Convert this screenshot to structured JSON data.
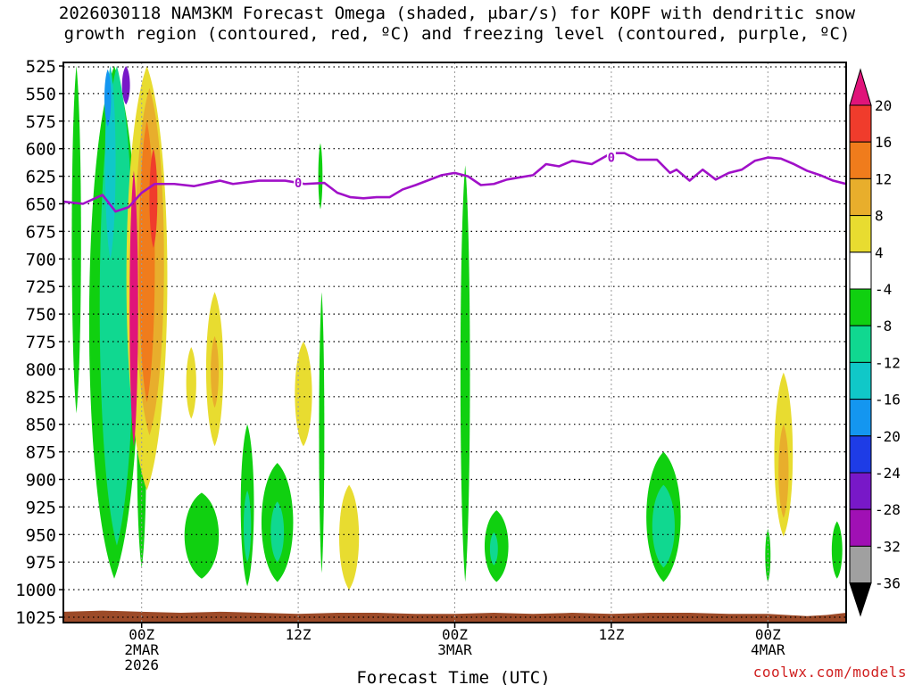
{
  "chart_data": {
    "type": "heatmap",
    "title_line1": "2026030118 NAM3KM Forecast Omega (shaded, μbar/s) for KOPF with dendritic snow",
    "title_line2": "growth region (contoured, red, ºC) and freezing level (contoured, purple, ºC)",
    "xlabel": "Forecast Time (UTC)",
    "ylabel": "",
    "x_range_hours": [
      -6,
      54
    ],
    "y_levels": [
      525,
      550,
      575,
      600,
      625,
      650,
      675,
      700,
      725,
      750,
      775,
      800,
      825,
      850,
      875,
      900,
      925,
      950,
      975,
      1000,
      1025
    ],
    "y_range_hpa": [
      525,
      1025
    ],
    "x_ticks": [
      {
        "hour": 0,
        "line1": "00Z",
        "line2": "2MAR",
        "line3": "2026"
      },
      {
        "hour": 12,
        "line1": "12Z",
        "line2": "",
        "line3": ""
      },
      {
        "hour": 24,
        "line1": "00Z",
        "line2": "3MAR",
        "line3": ""
      },
      {
        "hour": 36,
        "line1": "12Z",
        "line2": "",
        "line3": ""
      },
      {
        "hour": 48,
        "line1": "00Z",
        "line2": "4MAR",
        "line3": ""
      }
    ],
    "colorbar": {
      "labels": [
        "20",
        "16",
        "12",
        "8",
        "4",
        "-4",
        "-8",
        "-12",
        "-16",
        "-20",
        "-24",
        "-28",
        "-32",
        "-36"
      ],
      "colors": [
        "#e0147a",
        "#f03c2c",
        "#f07c1c",
        "#e8ae2c",
        "#e8dc30",
        "#ffffff",
        "#10d010",
        "#10d890",
        "#10c8c8",
        "#1496f0",
        "#1e3ce6",
        "#7818c8",
        "#a010b4",
        "#a0a0a0",
        "#000000"
      ]
    },
    "freezing_level": {
      "name": "freezing level 0ºC",
      "label": "0",
      "label_points": [
        [
          12.0,
          631
        ],
        [
          36.0,
          608
        ]
      ],
      "points": [
        [
          -6,
          648
        ],
        [
          -4.5,
          650
        ],
        [
          -3.0,
          642
        ],
        [
          -2.0,
          657
        ],
        [
          -1.0,
          653
        ],
        [
          0.0,
          640
        ],
        [
          1.0,
          632
        ],
        [
          2.5,
          632
        ],
        [
          4.0,
          634
        ],
        [
          6.0,
          629
        ],
        [
          7.0,
          632
        ],
        [
          9.0,
          629
        ],
        [
          11.0,
          629
        ],
        [
          12.5,
          632
        ],
        [
          14.0,
          631
        ],
        [
          15.0,
          640
        ],
        [
          16.0,
          644
        ],
        [
          17.0,
          645
        ],
        [
          18.0,
          644
        ],
        [
          19.0,
          644
        ],
        [
          20.0,
          637
        ],
        [
          21.0,
          633
        ],
        [
          23.0,
          624
        ],
        [
          24.0,
          622
        ],
        [
          25.0,
          625
        ],
        [
          26.0,
          633
        ],
        [
          27.0,
          632
        ],
        [
          28.0,
          628
        ],
        [
          30.0,
          624
        ],
        [
          31.0,
          614
        ],
        [
          32.0,
          616
        ],
        [
          33.0,
          611
        ],
        [
          34.5,
          614
        ],
        [
          36.0,
          604
        ],
        [
          37.0,
          604
        ],
        [
          38.0,
          610
        ],
        [
          39.5,
          610
        ],
        [
          40.5,
          622
        ],
        [
          41.0,
          619
        ],
        [
          42.0,
          629
        ],
        [
          43.0,
          619
        ],
        [
          44.0,
          628
        ],
        [
          45.0,
          622
        ],
        [
          46.0,
          619
        ],
        [
          47.0,
          611
        ],
        [
          48.0,
          608
        ],
        [
          49.0,
          609
        ],
        [
          50.0,
          614
        ],
        [
          51.0,
          620
        ],
        [
          52.0,
          624
        ],
        [
          53.0,
          629
        ],
        [
          54.0,
          632
        ]
      ]
    },
    "omega_regions": [
      {
        "name": "early-column-green",
        "value": -8,
        "hour": -5.0,
        "p_top": 525,
        "p_bot": 840,
        "hw": 0.35
      },
      {
        "name": "main-column-green",
        "value": -8,
        "hour": -2.1,
        "p_top": 525,
        "p_bot": 990,
        "hw": 1.9
      },
      {
        "name": "main-column-teal",
        "value": -12,
        "hour": -1.9,
        "p_top": 525,
        "p_bot": 960,
        "hw": 1.3
      },
      {
        "name": "main-column-cyan",
        "value": -16,
        "hour": -2.4,
        "p_top": 525,
        "p_bot": 700,
        "hw": 0.4
      },
      {
        "name": "upper-column-purple",
        "value": -28,
        "hour": -1.2,
        "p_top": 525,
        "p_bot": 560,
        "hw": 0.3
      },
      {
        "name": "upper-column-blue",
        "value": -20,
        "hour": -2.6,
        "p_top": 528,
        "p_bot": 580,
        "hw": 0.25
      },
      {
        "name": "right-streak-green",
        "value": -8,
        "hour": 0.0,
        "p_top": 770,
        "p_bot": 980,
        "hw": 0.35
      },
      {
        "name": "rising-column-yellow",
        "value": 4,
        "hour": 0.4,
        "p_top": 525,
        "p_bot": 910,
        "hw": 1.55
      },
      {
        "name": "rising-column-gold",
        "value": 8,
        "hour": 0.6,
        "p_top": 545,
        "p_bot": 860,
        "hw": 1.1
      },
      {
        "name": "rising-column-orange",
        "value": 12,
        "hour": 0.4,
        "p_top": 575,
        "p_bot": 830,
        "hw": 0.6
      },
      {
        "name": "rising-column-red",
        "value": 16,
        "hour": 0.9,
        "p_top": 600,
        "p_bot": 690,
        "hw": 0.3
      },
      {
        "name": "rising-column-magenta",
        "value": 20,
        "hour": -0.6,
        "p_top": 620,
        "p_bot": 870,
        "hw": 0.32
      },
      {
        "name": "lobe-yellow-a",
        "value": 4,
        "hour": 3.8,
        "p_top": 780,
        "p_bot": 845,
        "hw": 0.38
      },
      {
        "name": "lobe-yellow-b",
        "value": 4,
        "hour": 5.6,
        "p_top": 730,
        "p_bot": 870,
        "hw": 0.65
      },
      {
        "name": "lobe-gold-b",
        "value": 8,
        "hour": 5.6,
        "p_top": 770,
        "p_bot": 835,
        "hw": 0.3
      },
      {
        "name": "low-green-a",
        "value": -8,
        "hour": 4.6,
        "p_top": 912,
        "p_bot": 990,
        "hw": 1.3
      },
      {
        "name": "low-green-b",
        "value": -8,
        "hour": 8.1,
        "p_top": 850,
        "p_bot": 997,
        "hw": 0.5
      },
      {
        "name": "low-teal-b",
        "value": -12,
        "hour": 8.1,
        "p_top": 910,
        "p_bot": 975,
        "hw": 0.28
      },
      {
        "name": "low-green-c",
        "value": -8,
        "hour": 10.4,
        "p_top": 885,
        "p_bot": 993,
        "hw": 1.2
      },
      {
        "name": "low-teal-c",
        "value": -12,
        "hour": 10.4,
        "p_top": 920,
        "p_bot": 975,
        "hw": 0.5
      },
      {
        "name": "mid-yellow-c",
        "value": 4,
        "hour": 12.4,
        "p_top": 775,
        "p_bot": 870,
        "hw": 0.65
      },
      {
        "name": "thin-green-d",
        "value": -8,
        "hour": 13.8,
        "p_top": 730,
        "p_bot": 985,
        "hw": 0.2
      },
      {
        "name": "thin-green-e",
        "value": -8,
        "hour": 13.7,
        "p_top": 595,
        "p_bot": 655,
        "hw": 0.16
      },
      {
        "name": "low-yellow-d",
        "value": 4,
        "hour": 15.9,
        "p_top": 905,
        "p_bot": 1000,
        "hw": 0.75
      },
      {
        "name": "long-green-f",
        "value": -8,
        "hour": 24.8,
        "p_top": 615,
        "p_bot": 993,
        "hw": 0.36
      },
      {
        "name": "low-green-g",
        "value": -8,
        "hour": 27.2,
        "p_top": 928,
        "p_bot": 993,
        "hw": 0.9
      },
      {
        "name": "low-teal-g",
        "value": -12,
        "hour": 27.0,
        "p_top": 948,
        "p_bot": 978,
        "hw": 0.3
      },
      {
        "name": "low-green-h",
        "value": -8,
        "hour": 40.0,
        "p_top": 875,
        "p_bot": 993,
        "hw": 1.3
      },
      {
        "name": "low-teal-h",
        "value": -12,
        "hour": 40.0,
        "p_top": 905,
        "p_bot": 980,
        "hw": 0.85
      },
      {
        "name": "thin-green-i",
        "value": -8,
        "hour": 48.0,
        "p_top": 945,
        "p_bot": 993,
        "hw": 0.2
      },
      {
        "name": "low-yellow-j",
        "value": 4,
        "hour": 49.2,
        "p_top": 803,
        "p_bot": 952,
        "hw": 0.7
      },
      {
        "name": "low-gold-j",
        "value": 8,
        "hour": 49.2,
        "p_top": 850,
        "p_bot": 935,
        "hw": 0.38
      },
      {
        "name": "low-green-k",
        "value": -8,
        "hour": 53.3,
        "p_top": 938,
        "p_bot": 990,
        "hw": 0.4
      }
    ],
    "terrain": {
      "name": "surface",
      "color": "#9c4a28",
      "points": [
        [
          -6,
          1020
        ],
        [
          -3,
          1019
        ],
        [
          0,
          1020
        ],
        [
          3,
          1021
        ],
        [
          6,
          1020
        ],
        [
          9,
          1021
        ],
        [
          12,
          1022
        ],
        [
          15,
          1021
        ],
        [
          18,
          1021
        ],
        [
          21,
          1022
        ],
        [
          24,
          1022
        ],
        [
          27,
          1021
        ],
        [
          30,
          1022
        ],
        [
          33,
          1021
        ],
        [
          36,
          1022
        ],
        [
          39,
          1021
        ],
        [
          42,
          1021
        ],
        [
          45,
          1022
        ],
        [
          48,
          1022
        ],
        [
          51,
          1024
        ],
        [
          52.5,
          1023
        ],
        [
          54,
          1021
        ]
      ]
    }
  },
  "credit": "coolwx.com/models"
}
